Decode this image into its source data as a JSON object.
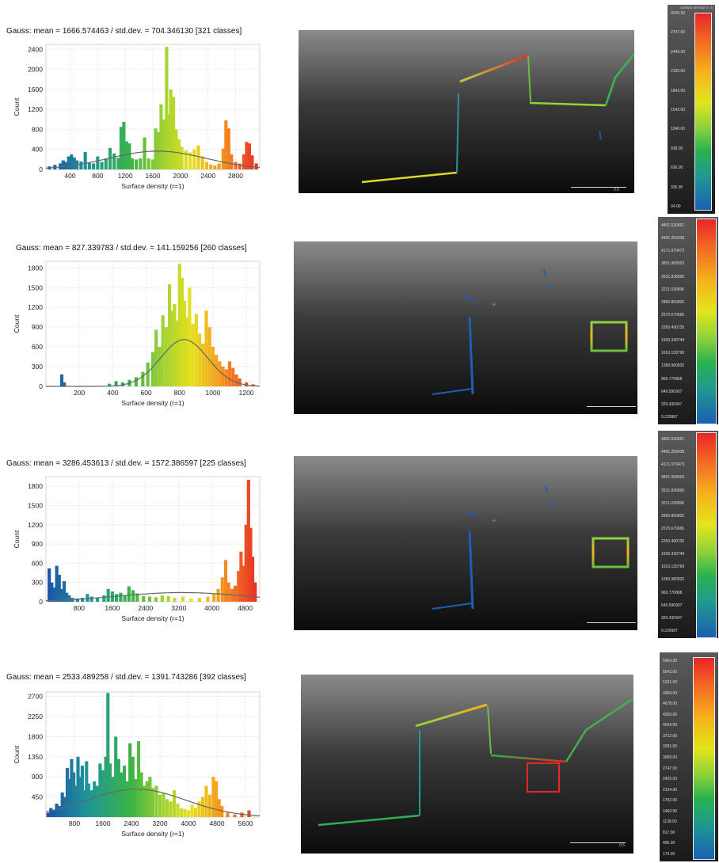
{
  "chart_data": [
    {
      "type": "bar",
      "title": "Gauss: mean = 1666.574463 / std.dev. = 704.346130 [321 classes]",
      "xlabel": "Surface density (r=1)",
      "ylabel": "Count",
      "xticks": [
        400,
        800,
        1200,
        1600,
        2000,
        2400,
        2800
      ],
      "yticks": [
        0,
        400,
        800,
        1200,
        1600,
        2000,
        2400
      ],
      "xlim": [
        50,
        3150
      ],
      "ylim": [
        0,
        2500
      ],
      "grid": true,
      "gauss": {
        "mean": 1666.574463,
        "std": 704.34613
      },
      "bars": [
        {
          "x": 100,
          "y": 60
        },
        {
          "x": 180,
          "y": 90
        },
        {
          "x": 260,
          "y": 120
        },
        {
          "x": 300,
          "y": 180
        },
        {
          "x": 340,
          "y": 150
        },
        {
          "x": 380,
          "y": 260
        },
        {
          "x": 420,
          "y": 300
        },
        {
          "x": 460,
          "y": 240
        },
        {
          "x": 500,
          "y": 180
        },
        {
          "x": 560,
          "y": 160
        },
        {
          "x": 620,
          "y": 350
        },
        {
          "x": 680,
          "y": 130
        },
        {
          "x": 740,
          "y": 120
        },
        {
          "x": 800,
          "y": 260
        },
        {
          "x": 860,
          "y": 150
        },
        {
          "x": 920,
          "y": 220
        },
        {
          "x": 980,
          "y": 430
        },
        {
          "x": 1040,
          "y": 320
        },
        {
          "x": 1100,
          "y": 230
        },
        {
          "x": 1140,
          "y": 850
        },
        {
          "x": 1180,
          "y": 950
        },
        {
          "x": 1220,
          "y": 560
        },
        {
          "x": 1260,
          "y": 520
        },
        {
          "x": 1300,
          "y": 220
        },
        {
          "x": 1360,
          "y": 200
        },
        {
          "x": 1420,
          "y": 220
        },
        {
          "x": 1480,
          "y": 640
        },
        {
          "x": 1540,
          "y": 220
        },
        {
          "x": 1600,
          "y": 200
        },
        {
          "x": 1640,
          "y": 820
        },
        {
          "x": 1680,
          "y": 750
        },
        {
          "x": 1720,
          "y": 1300
        },
        {
          "x": 1760,
          "y": 1000
        },
        {
          "x": 1800,
          "y": 2450
        },
        {
          "x": 1830,
          "y": 1100
        },
        {
          "x": 1860,
          "y": 1600
        },
        {
          "x": 1900,
          "y": 1450
        },
        {
          "x": 1940,
          "y": 800
        },
        {
          "x": 1980,
          "y": 600
        },
        {
          "x": 2020,
          "y": 450
        },
        {
          "x": 2080,
          "y": 380
        },
        {
          "x": 2140,
          "y": 340
        },
        {
          "x": 2200,
          "y": 400
        },
        {
          "x": 2260,
          "y": 480
        },
        {
          "x": 2320,
          "y": 260
        },
        {
          "x": 2380,
          "y": 150
        },
        {
          "x": 2440,
          "y": 100
        },
        {
          "x": 2500,
          "y": 80
        },
        {
          "x": 2560,
          "y": 120
        },
        {
          "x": 2620,
          "y": 420
        },
        {
          "x": 2660,
          "y": 980
        },
        {
          "x": 2700,
          "y": 820
        },
        {
          "x": 2740,
          "y": 300
        },
        {
          "x": 2800,
          "y": 150
        },
        {
          "x": 2860,
          "y": 120
        },
        {
          "x": 2920,
          "y": 300
        },
        {
          "x": 2960,
          "y": 550
        },
        {
          "x": 3000,
          "y": 520
        },
        {
          "x": 3040,
          "y": 280
        },
        {
          "x": 3100,
          "y": 120
        }
      ]
    },
    {
      "type": "bar",
      "title": "Gauss: mean = 827.339783 / std.dev. = 141.159256 [260 classes]",
      "xlabel": "Surface density (r=1)",
      "ylabel": "Count",
      "xticks": [
        200,
        400,
        600,
        800,
        1000,
        1200
      ],
      "yticks": [
        0,
        300,
        600,
        900,
        1200,
        1500,
        1800
      ],
      "xlim": [
        0,
        1280
      ],
      "ylim": [
        0,
        1900
      ],
      "grid": true,
      "gauss": {
        "mean": 827.339783,
        "std": 141.159256
      },
      "bars": [
        {
          "x": 95,
          "y": 180
        },
        {
          "x": 110,
          "y": 60
        },
        {
          "x": 380,
          "y": 40
        },
        {
          "x": 420,
          "y": 80
        },
        {
          "x": 460,
          "y": 60
        },
        {
          "x": 500,
          "y": 100
        },
        {
          "x": 540,
          "y": 140
        },
        {
          "x": 580,
          "y": 220
        },
        {
          "x": 610,
          "y": 360
        },
        {
          "x": 640,
          "y": 520
        },
        {
          "x": 660,
          "y": 860
        },
        {
          "x": 680,
          "y": 600
        },
        {
          "x": 700,
          "y": 1080
        },
        {
          "x": 720,
          "y": 900
        },
        {
          "x": 740,
          "y": 1550
        },
        {
          "x": 755,
          "y": 1150
        },
        {
          "x": 770,
          "y": 1250
        },
        {
          "x": 785,
          "y": 1000
        },
        {
          "x": 800,
          "y": 1860
        },
        {
          "x": 815,
          "y": 1650
        },
        {
          "x": 830,
          "y": 1300
        },
        {
          "x": 845,
          "y": 1050
        },
        {
          "x": 860,
          "y": 1500
        },
        {
          "x": 880,
          "y": 950
        },
        {
          "x": 900,
          "y": 1100
        },
        {
          "x": 920,
          "y": 800
        },
        {
          "x": 940,
          "y": 650
        },
        {
          "x": 960,
          "y": 1150
        },
        {
          "x": 980,
          "y": 900
        },
        {
          "x": 1000,
          "y": 600
        },
        {
          "x": 1020,
          "y": 480
        },
        {
          "x": 1040,
          "y": 380
        },
        {
          "x": 1060,
          "y": 300
        },
        {
          "x": 1080,
          "y": 260
        },
        {
          "x": 1100,
          "y": 380
        },
        {
          "x": 1120,
          "y": 280
        },
        {
          "x": 1140,
          "y": 180
        },
        {
          "x": 1160,
          "y": 120
        },
        {
          "x": 1200,
          "y": 60
        },
        {
          "x": 1240,
          "y": 30
        }
      ]
    },
    {
      "type": "bar",
      "title": "Gauss: mean = 3286.453613 / std.dev. = 1572.386597 [225 classes]",
      "xlabel": "Surface density (r=1)",
      "ylabel": "Count",
      "xticks": [
        800,
        1600,
        2400,
        3200,
        4000,
        4800
      ],
      "yticks": [
        0,
        300,
        600,
        900,
        1200,
        1500,
        1800
      ],
      "xlim": [
        0,
        5150
      ],
      "ylim": [
        0,
        1950
      ],
      "grid": true,
      "gauss": {
        "mean": 3286.453613,
        "std": 1572.386597
      },
      "bars": [
        {
          "x": 80,
          "y": 520
        },
        {
          "x": 140,
          "y": 300
        },
        {
          "x": 200,
          "y": 220
        },
        {
          "x": 260,
          "y": 560
        },
        {
          "x": 320,
          "y": 420
        },
        {
          "x": 380,
          "y": 200
        },
        {
          "x": 440,
          "y": 320
        },
        {
          "x": 500,
          "y": 140
        },
        {
          "x": 560,
          "y": 100
        },
        {
          "x": 640,
          "y": 60
        },
        {
          "x": 760,
          "y": 50
        },
        {
          "x": 880,
          "y": 60
        },
        {
          "x": 1000,
          "y": 120
        },
        {
          "x": 1100,
          "y": 80
        },
        {
          "x": 1240,
          "y": 60
        },
        {
          "x": 1400,
          "y": 100
        },
        {
          "x": 1500,
          "y": 200
        },
        {
          "x": 1600,
          "y": 160
        },
        {
          "x": 1700,
          "y": 120
        },
        {
          "x": 1800,
          "y": 140
        },
        {
          "x": 1900,
          "y": 100
        },
        {
          "x": 2000,
          "y": 240
        },
        {
          "x": 2100,
          "y": 180
        },
        {
          "x": 2200,
          "y": 130
        },
        {
          "x": 2350,
          "y": 90
        },
        {
          "x": 2500,
          "y": 80
        },
        {
          "x": 2650,
          "y": 70
        },
        {
          "x": 2800,
          "y": 100
        },
        {
          "x": 2950,
          "y": 90
        },
        {
          "x": 3100,
          "y": 60
        },
        {
          "x": 3300,
          "y": 80
        },
        {
          "x": 3500,
          "y": 50
        },
        {
          "x": 3700,
          "y": 60
        },
        {
          "x": 3900,
          "y": 80
        },
        {
          "x": 4050,
          "y": 120
        },
        {
          "x": 4150,
          "y": 200
        },
        {
          "x": 4250,
          "y": 380
        },
        {
          "x": 4330,
          "y": 650
        },
        {
          "x": 4400,
          "y": 300
        },
        {
          "x": 4480,
          "y": 200
        },
        {
          "x": 4560,
          "y": 250
        },
        {
          "x": 4640,
          "y": 480
        },
        {
          "x": 4700,
          "y": 780
        },
        {
          "x": 4760,
          "y": 560
        },
        {
          "x": 4820,
          "y": 1200
        },
        {
          "x": 4880,
          "y": 1900
        },
        {
          "x": 4930,
          "y": 1150
        },
        {
          "x": 4980,
          "y": 700
        },
        {
          "x": 5040,
          "y": 300
        }
      ]
    },
    {
      "type": "bar",
      "title": "Gauss: mean = 2533.489258 / std.dev. = 1391.743286 [392 classes]",
      "xlabel": "Surface density (r=1)",
      "ylabel": "Count",
      "xticks": [
        800,
        1600,
        2400,
        3200,
        4000,
        4800,
        5600
      ],
      "yticks": [
        450,
        900,
        1350,
        1800,
        2250,
        2700
      ],
      "xlim": [
        0,
        6000
      ],
      "ylim": [
        0,
        2800
      ],
      "grid": true,
      "gauss": {
        "mean": 2533.489258,
        "std": 1391.743286
      },
      "bars": [
        {
          "x": 60,
          "y": 100
        },
        {
          "x": 140,
          "y": 200
        },
        {
          "x": 220,
          "y": 150
        },
        {
          "x": 300,
          "y": 300
        },
        {
          "x": 380,
          "y": 250
        },
        {
          "x": 460,
          "y": 550
        },
        {
          "x": 540,
          "y": 450
        },
        {
          "x": 600,
          "y": 1100
        },
        {
          "x": 660,
          "y": 850
        },
        {
          "x": 720,
          "y": 1300
        },
        {
          "x": 780,
          "y": 1000
        },
        {
          "x": 840,
          "y": 700
        },
        {
          "x": 900,
          "y": 1350
        },
        {
          "x": 960,
          "y": 900
        },
        {
          "x": 1020,
          "y": 1150
        },
        {
          "x": 1080,
          "y": 600
        },
        {
          "x": 1140,
          "y": 1250
        },
        {
          "x": 1200,
          "y": 750
        },
        {
          "x": 1280,
          "y": 600
        },
        {
          "x": 1360,
          "y": 800
        },
        {
          "x": 1440,
          "y": 700
        },
        {
          "x": 1520,
          "y": 1200
        },
        {
          "x": 1600,
          "y": 1050
        },
        {
          "x": 1680,
          "y": 1350
        },
        {
          "x": 1740,
          "y": 2780
        },
        {
          "x": 1800,
          "y": 1200
        },
        {
          "x": 1880,
          "y": 900
        },
        {
          "x": 1960,
          "y": 1800
        },
        {
          "x": 2040,
          "y": 1300
        },
        {
          "x": 2120,
          "y": 1000
        },
        {
          "x": 2200,
          "y": 1150
        },
        {
          "x": 2280,
          "y": 800
        },
        {
          "x": 2360,
          "y": 1650
        },
        {
          "x": 2440,
          "y": 1350
        },
        {
          "x": 2520,
          "y": 850
        },
        {
          "x": 2600,
          "y": 1700
        },
        {
          "x": 2680,
          "y": 1000
        },
        {
          "x": 2760,
          "y": 700
        },
        {
          "x": 2840,
          "y": 800
        },
        {
          "x": 2920,
          "y": 900
        },
        {
          "x": 3000,
          "y": 650
        },
        {
          "x": 3100,
          "y": 700
        },
        {
          "x": 3200,
          "y": 500
        },
        {
          "x": 3300,
          "y": 550
        },
        {
          "x": 3400,
          "y": 400
        },
        {
          "x": 3500,
          "y": 350
        },
        {
          "x": 3600,
          "y": 600
        },
        {
          "x": 3700,
          "y": 300
        },
        {
          "x": 3800,
          "y": 200
        },
        {
          "x": 3900,
          "y": 180
        },
        {
          "x": 4000,
          "y": 150
        },
        {
          "x": 4100,
          "y": 280
        },
        {
          "x": 4200,
          "y": 200
        },
        {
          "x": 4300,
          "y": 350
        },
        {
          "x": 4400,
          "y": 450
        },
        {
          "x": 4500,
          "y": 700
        },
        {
          "x": 4600,
          "y": 500
        },
        {
          "x": 4700,
          "y": 900
        },
        {
          "x": 4780,
          "y": 800
        },
        {
          "x": 4860,
          "y": 400
        },
        {
          "x": 4940,
          "y": 250
        },
        {
          "x": 5100,
          "y": 100
        },
        {
          "x": 5300,
          "y": 60
        },
        {
          "x": 5500,
          "y": 100
        },
        {
          "x": 5700,
          "y": 150
        }
      ]
    }
  ],
  "legends": [
    {
      "title": "Surface density (r=1)",
      "labels": [
        "3049.90",
        "2747.00",
        "2445.00",
        "2150.00",
        "1843.00",
        "1542.00",
        "1240.00",
        "938.00",
        "636.00",
        "335.00",
        "34.00"
      ]
    },
    {
      "title": "",
      "labels": [
        "4801.530651",
        "4481.250438",
        "4171.970473",
        "3851.908503",
        "3531.836895",
        "3211.036898",
        "2890.850825",
        "2570.670665",
        "2250.490735",
        "1930.330749",
        "1610.130799",
        "1289.980820",
        "969.770868",
        "649.590907",
        "329.430947",
        "9.230987"
      ]
    },
    {
      "title": "",
      "labels": [
        "4801.530651",
        "4481.250438",
        "4171.970473",
        "3851.908503",
        "3531.836895",
        "3211.036898",
        "2890.850825",
        "2570.670665",
        "2250.490735",
        "1930.330749",
        "1610.130799",
        "1289.980820",
        "969.770868",
        "649.590907",
        "329.430947",
        "9.230987"
      ]
    },
    {
      "title": "",
      "labels": [
        "5964.30",
        "5643.00",
        "5321.00",
        "4999.00",
        "4678.00",
        "4356.00",
        "4034.00",
        "3712.00",
        "3391.00",
        "3069.00",
        "2747.00",
        "2425.00",
        "2104.00",
        "1782.00",
        "1460.00",
        "1138.00",
        "817.00",
        "495.00",
        "173.00"
      ]
    }
  ],
  "views": [
    {
      "scale_text": "0.5"
    },
    {
      "scale_text": ""
    },
    {
      "scale_text": ""
    },
    {
      "scale_text": "0.5"
    }
  ]
}
